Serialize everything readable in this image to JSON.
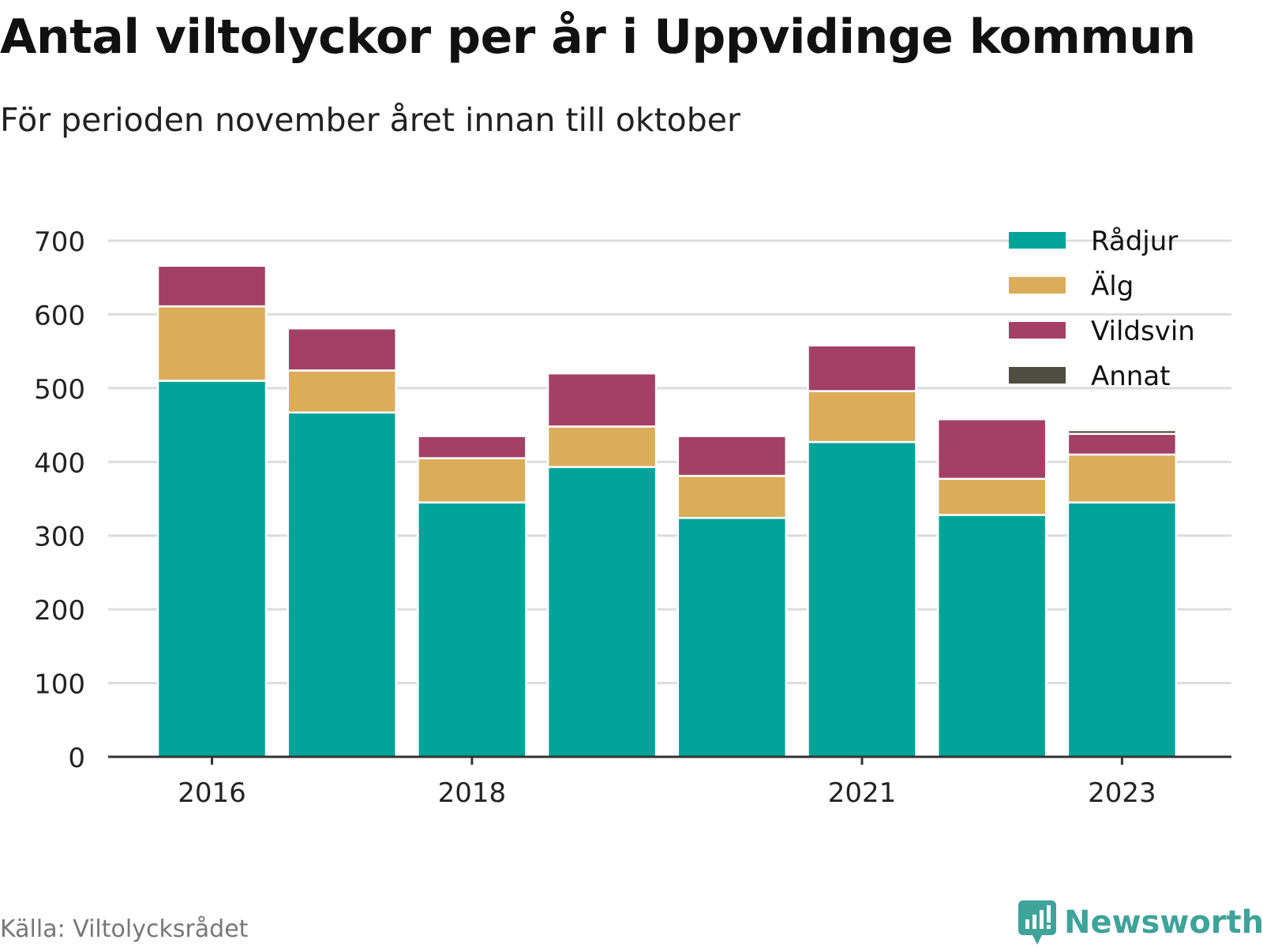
{
  "header": {
    "title": "Antal viltolyckor per år i Uppvidinge kommun",
    "subtitle": "För perioden november året innan till oktober"
  },
  "footer": {
    "source": "Källa: Viltolycksrådet",
    "brand": "Newsworthy"
  },
  "chart_data": {
    "type": "bar",
    "stacked": true,
    "categories": [
      "2016",
      "2017",
      "2018",
      "2019",
      "2020",
      "2021",
      "2022",
      "2023"
    ],
    "x_tick_labels": [
      "2016",
      "2018",
      "2021",
      "2023"
    ],
    "y_ticks": [
      0,
      100,
      200,
      300,
      400,
      500,
      600,
      700
    ],
    "ylim": [
      0,
      700
    ],
    "grid": true,
    "legend_position": "top-right",
    "series": [
      {
        "name": "Rådjur",
        "color": "#00a398",
        "values": [
          510,
          467,
          345,
          393,
          324,
          427,
          328,
          345
        ]
      },
      {
        "name": "Älg",
        "color": "#dbac5a",
        "values": [
          101,
          57,
          60,
          55,
          57,
          69,
          49,
          65
        ]
      },
      {
        "name": "Vildsvin",
        "color": "#a34066",
        "values": [
          55,
          57,
          30,
          72,
          54,
          62,
          81,
          28
        ]
      },
      {
        "name": "Annat",
        "color": "#4d4e41",
        "values": [
          0,
          0,
          0,
          0,
          0,
          2,
          2,
          5
        ]
      }
    ]
  }
}
